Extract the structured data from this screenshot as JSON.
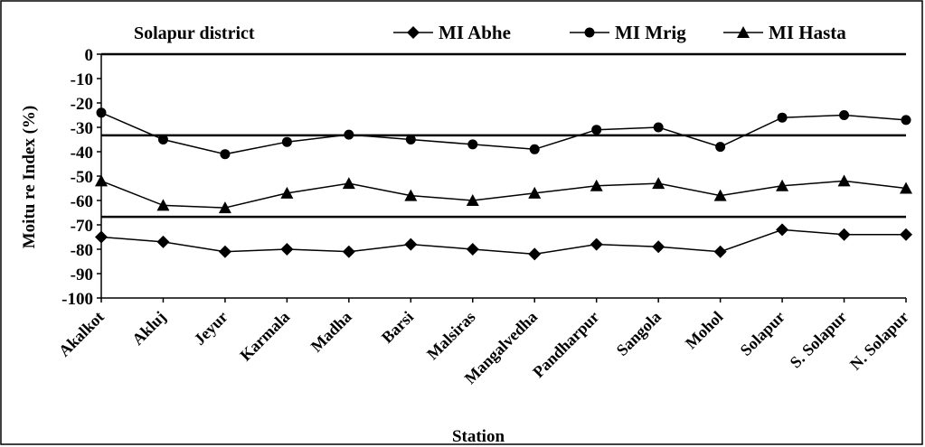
{
  "chart_data": {
    "type": "line",
    "title": "Solapur district",
    "xlabel": "Station",
    "ylabel": "Moitu re Index (%)",
    "categories": [
      "Akalkot",
      "Akluj",
      "Jeyur",
      "Karmala",
      "Madha",
      "Barsi",
      "Malsiras",
      "Mangalvedha",
      "Pandharpur",
      "Sangola",
      "Mohol",
      "Solapur",
      "S. Solapur",
      "N. Solapur"
    ],
    "ylim": [
      -100,
      0
    ],
    "yticks": [
      0,
      -10,
      -20,
      -30,
      -40,
      -50,
      -60,
      -70,
      -80,
      -90,
      -100
    ],
    "grid": false,
    "legend_position": "top",
    "reference_lines": [
      0,
      -33.3,
      -66.7
    ],
    "series": [
      {
        "name": "MI Abhe",
        "marker": "diamond",
        "color": "#000000",
        "values": [
          -75,
          -77,
          -81,
          -80,
          -81,
          -78,
          -80,
          -82,
          -78,
          -79,
          -81,
          -72,
          -74,
          -74
        ]
      },
      {
        "name": "MI Mrig",
        "marker": "circle",
        "color": "#000000",
        "values": [
          -24,
          -35,
          -41,
          -36,
          -33,
          -35,
          -37,
          -39,
          -31,
          -30,
          -38,
          -26,
          -25,
          -27
        ]
      },
      {
        "name": "MI Hasta",
        "marker": "triangle",
        "color": "#000000",
        "values": [
          -52,
          -62,
          -63,
          -57,
          -53,
          -58,
          -60,
          -57,
          -54,
          -53,
          -58,
          -54,
          -52,
          -55
        ]
      }
    ]
  }
}
